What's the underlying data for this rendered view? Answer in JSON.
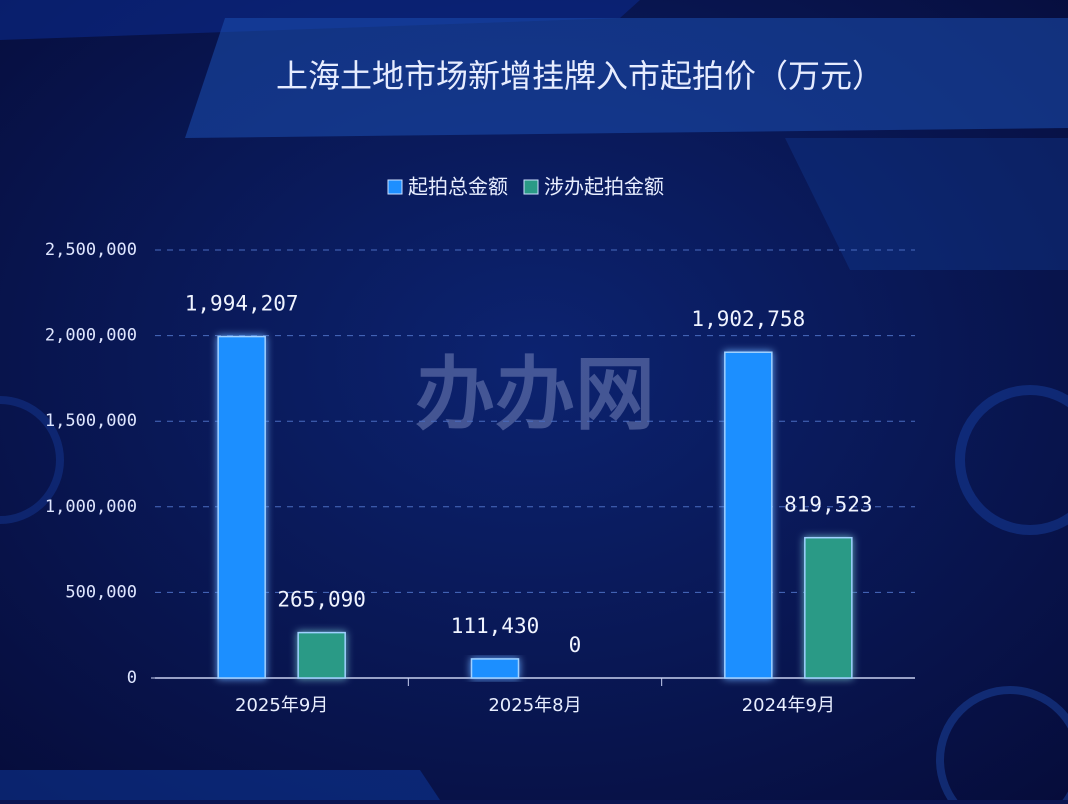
{
  "chart_data": {
    "type": "bar",
    "title": "上海土地市场新增挂牌入市起拍价（万元）",
    "watermark": "办办网",
    "categories": [
      "2025年9月",
      "2025年8月",
      "2024年9月"
    ],
    "series": [
      {
        "name": "起拍总金额",
        "color": "#1e8fff",
        "values": [
          1994207,
          111430,
          1902758
        ],
        "value_labels": [
          "1,994,207",
          "111,430",
          "1,902,758"
        ]
      },
      {
        "name": "涉办起拍金额",
        "color": "#2a9a86",
        "values": [
          265090,
          0,
          819523
        ],
        "value_labels": [
          "265,090",
          "0",
          "819,523"
        ]
      }
    ],
    "ylim": [
      0,
      2500000
    ],
    "yticks": [
      0,
      {
        "value": 500000,
        "label": "500,000"
      },
      {
        "value": 1000000,
        "label": "1,000,000"
      },
      {
        "value": 1500000,
        "label": "1,500,000"
      },
      {
        "value": 2000000,
        "label": "2,000,000"
      },
      {
        "value": 2500000,
        "label": "2,500,000"
      }
    ],
    "grid": true,
    "legend": "top"
  }
}
